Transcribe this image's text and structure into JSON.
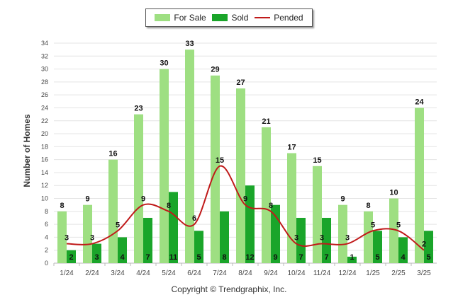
{
  "chart_data": {
    "type": "bar",
    "ylabel": "Number of Homes",
    "xlabel": "",
    "ylim": [
      0,
      34
    ],
    "yticks": [
      0,
      2,
      4,
      6,
      8,
      10,
      12,
      14,
      16,
      18,
      20,
      22,
      24,
      26,
      28,
      30,
      32,
      34
    ],
    "categories": [
      "1/24",
      "2/24",
      "3/24",
      "4/24",
      "5/24",
      "6/24",
      "7/24",
      "8/24",
      "9/24",
      "10/24",
      "11/24",
      "12/24",
      "1/25",
      "2/25",
      "3/25"
    ],
    "series": [
      {
        "name": "For Sale",
        "kind": "bar",
        "color": "#9edf82",
        "values": [
          8,
          9,
          16,
          23,
          30,
          33,
          29,
          27,
          21,
          17,
          15,
          9,
          8,
          10,
          24
        ]
      },
      {
        "name": "Sold",
        "kind": "bar",
        "color": "#1aa52a",
        "values": [
          2,
          3,
          4,
          7,
          11,
          5,
          8,
          12,
          9,
          7,
          7,
          1,
          5,
          4,
          5
        ]
      },
      {
        "name": "Pended",
        "kind": "line",
        "color": "#c01a1a",
        "values": [
          3,
          3,
          5,
          9,
          8,
          6,
          15,
          9,
          8,
          3,
          3,
          3,
          5,
          5,
          2
        ]
      }
    ],
    "grid": true,
    "legend_position": "top-center"
  },
  "footer": {
    "credit": "Copyright © Trendgraphix, Inc."
  }
}
